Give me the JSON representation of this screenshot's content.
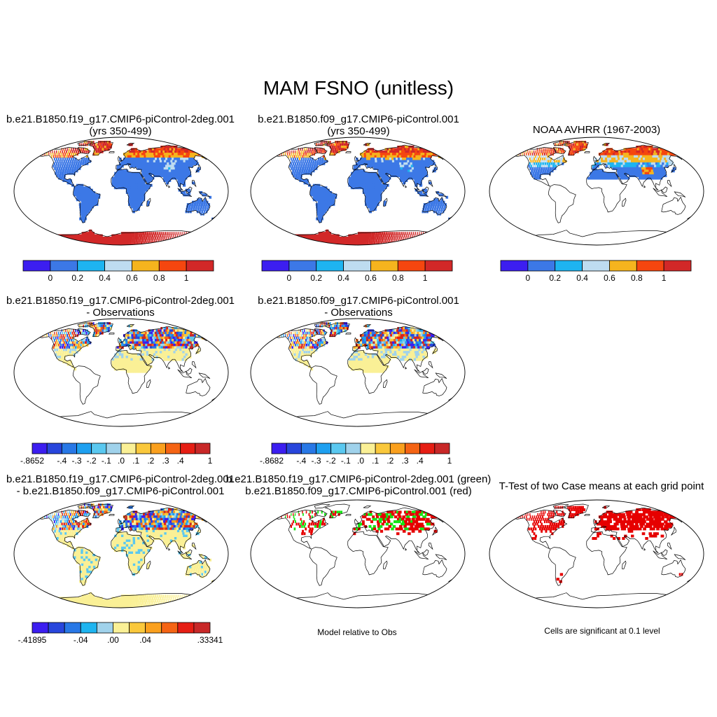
{
  "figure": {
    "title": "MAM FSNO (unitless)"
  },
  "panels": [
    {
      "id": "p1",
      "title_line1": "b.e21.B1850.f19_g17.CMIP6-piControl-2deg.001",
      "title_line2": "(yrs 350-499)",
      "fill": "model_a"
    },
    {
      "id": "p2",
      "title_line1": "b.e21.B1850.f09_g17.CMIP6-piControl.001",
      "title_line2": "(yrs 350-499)",
      "fill": "model_b"
    },
    {
      "id": "p3",
      "title_line1": "NOAA AVHRR (1967-2003)",
      "title_line2": "",
      "fill": "obs"
    },
    {
      "id": "p4",
      "title_line1": "b.e21.B1850.f19_g17.CMIP6-piControl-2deg.001",
      "title_line2": "- Observations",
      "fill": "diff"
    },
    {
      "id": "p5",
      "title_line1": "b.e21.B1850.f09_g17.CMIP6-piControl.001",
      "title_line2": "- Observations",
      "fill": "diff"
    },
    {
      "id": "p7",
      "title_line1": "b.e21.B1850.f19_g17.CMIP6-piControl-2deg.001",
      "title_line2": "- b.e21.B1850.f09_g17.CMIP6-piControl.001",
      "fill": "diff2"
    },
    {
      "id": "p8",
      "title_line1": "b.e21.B1850.f19_g17.CMIP6-piControl-2deg.001 (green)",
      "title_line2": "b.e21.B1850.f09_g17.CMIP6-piControl.001 (red)",
      "fill": "dots_rg",
      "note": "Model relative to Obs"
    },
    {
      "id": "p9",
      "title_line1": "T-Test of two Case means at each grid point",
      "title_line2": "",
      "fill": "dots_r",
      "note": "Cells are significant at 0.1 level"
    }
  ],
  "colorbars": {
    "abs": {
      "colors": [
        "#3c1ef0",
        "#3c78e6",
        "#1eb4f0",
        "#bedcf0",
        "#f5b41e",
        "#f5460f",
        "#d22828"
      ],
      "labels": [
        "0",
        "0.2",
        "0.4",
        "0.6",
        "0.8",
        "1"
      ]
    },
    "diff": {
      "colors": [
        "#3c1ef0",
        "#2846dc",
        "#2878e6",
        "#1ea0f0",
        "#5ac8f0",
        "#a0d2eb",
        "#faf096",
        "#fac83c",
        "#faa01e",
        "#f56414",
        "#e61e14",
        "#c82828"
      ],
      "labels_p4": [
        "-.8652",
        "-.4",
        "-.3",
        "-.2",
        "-.1",
        ".0",
        ".1",
        ".2",
        ".3",
        ".4",
        "1"
      ],
      "labels_p5": [
        "-.8682",
        "-.4",
        "-.3",
        "-.2",
        "-.1",
        ".0",
        ".1",
        ".2",
        ".3",
        ".4",
        "1"
      ]
    },
    "diff2": {
      "colors": [
        "#3c1ef0",
        "#2846dc",
        "#2878e6",
        "#1eb4f0",
        "#a0d2eb",
        "#faf096",
        "#fac83c",
        "#faa01e",
        "#f56414",
        "#e61e14",
        "#c82828"
      ],
      "labels": [
        "-.41895",
        "-.04",
        ".00",
        ".04",
        ".33341"
      ]
    }
  },
  "palette": {
    "land_blue": "#3c78e6",
    "snow_red": "#d22828",
    "snow_orange": "#f5b41e",
    "snow_redorange": "#f5460f",
    "pale_yellow": "#faf096",
    "dot_red": "#e60000",
    "dot_green": "#14e614"
  }
}
